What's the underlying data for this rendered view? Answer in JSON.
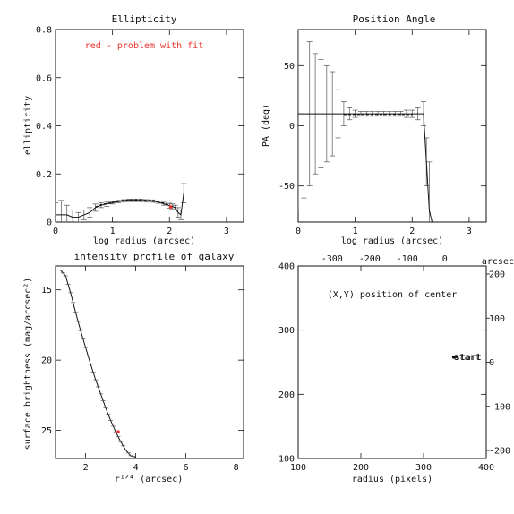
{
  "chart_data": [
    {
      "id": "ellipticity",
      "type": "line",
      "title": "Ellipticity",
      "xlabel": "log radius (arcsec)",
      "ylabel": "ellipticity",
      "xlim": [
        0,
        3.3
      ],
      "ylim": [
        0,
        0.8
      ],
      "xticks": [
        0,
        1,
        2,
        3
      ],
      "yticks": [
        0,
        0.2,
        0.4,
        0.6,
        0.8
      ],
      "annotation": "red - problem with fit",
      "annotation_color": "#e8322a",
      "x": [
        0.0,
        0.1,
        0.2,
        0.3,
        0.4,
        0.5,
        0.6,
        0.7,
        0.8,
        0.9,
        1.0,
        1.1,
        1.2,
        1.3,
        1.4,
        1.5,
        1.6,
        1.7,
        1.8,
        1.9,
        2.0,
        2.05,
        2.1,
        2.15,
        2.2,
        2.25
      ],
      "y": [
        0.03,
        0.03,
        0.03,
        0.02,
        0.02,
        0.03,
        0.04,
        0.06,
        0.07,
        0.075,
        0.08,
        0.085,
        0.088,
        0.09,
        0.09,
        0.09,
        0.088,
        0.087,
        0.083,
        0.076,
        0.068,
        0.065,
        0.06,
        0.04,
        0.03,
        0.12
      ],
      "err": [
        0.05,
        0.06,
        0.04,
        0.03,
        0.02,
        0.02,
        0.02,
        0.015,
        0.01,
        0.01,
        0.005,
        0.005,
        0.005,
        0.005,
        0.005,
        0.005,
        0.005,
        0.005,
        0.005,
        0.006,
        0.01,
        0.01,
        0.01,
        0.02,
        0.02,
        0.04
      ],
      "problem_points": [
        [
          2.02,
          0.063
        ]
      ]
    },
    {
      "id": "position-angle",
      "type": "line",
      "title": "Position Angle",
      "xlabel": "log radius (arcsec)",
      "ylabel": "PA (deg)",
      "xlim": [
        0,
        3.3
      ],
      "ylim": [
        -80,
        80
      ],
      "xticks": [
        0,
        1,
        2,
        3
      ],
      "yticks": [
        -50,
        0,
        50
      ],
      "x": [
        0.0,
        0.1,
        0.2,
        0.3,
        0.4,
        0.5,
        0.6,
        0.7,
        0.8,
        0.9,
        1.0,
        1.1,
        1.2,
        1.3,
        1.4,
        1.5,
        1.6,
        1.7,
        1.8,
        1.9,
        2.0,
        2.1,
        2.2,
        2.25,
        2.3,
        2.35,
        2.4
      ],
      "y": [
        10,
        10,
        10,
        10,
        10,
        10,
        10,
        10,
        10,
        10,
        10,
        10,
        10,
        10,
        10,
        10,
        10,
        10,
        10,
        10,
        10,
        10,
        10,
        -30,
        -70,
        -80,
        -80
      ],
      "err": [
        80,
        70,
        60,
        50,
        45,
        40,
        35,
        20,
        10,
        5,
        3,
        2,
        2,
        2,
        2,
        2,
        2,
        2,
        2,
        3,
        3,
        5,
        10,
        20,
        40,
        0,
        0
      ]
    },
    {
      "id": "intensity-profile",
      "type": "line",
      "title": "intensity profile of galaxy",
      "xlabel": "r¹ᐟ⁴ (arcsec)",
      "ylabel": "surface brightness (mag/arcsec²)",
      "xlim": [
        0.8,
        8.3
      ],
      "ylim": [
        27,
        13.3
      ],
      "xticks": [
        2,
        4,
        6,
        8
      ],
      "yticks": [
        15,
        20,
        25
      ],
      "x": [
        1.0,
        1.2,
        1.4,
        1.6,
        1.8,
        2.0,
        2.2,
        2.4,
        2.6,
        2.8,
        3.0,
        3.2,
        3.4,
        3.6,
        3.8,
        4.0
      ],
      "y": [
        13.6,
        14.0,
        15.2,
        16.6,
        17.9,
        19.1,
        20.3,
        21.4,
        22.4,
        23.4,
        24.3,
        25.1,
        25.8,
        26.4,
        26.8,
        26.9
      ],
      "problem_points": [
        [
          3.3,
          25.1
        ]
      ]
    },
    {
      "id": "center-position",
      "type": "scatter",
      "annotation": "(X,Y) position of center",
      "xlabel": "radius (pixels)",
      "top_axis_label": "arcsec",
      "xlim": [
        100,
        400
      ],
      "ylim": [
        100,
        400
      ],
      "xticks": [
        100,
        200,
        300,
        400
      ],
      "yticks": [
        100,
        200,
        300,
        400
      ],
      "top_xticks": [
        -300,
        -200,
        -100,
        0
      ],
      "right_yticks": [
        200,
        100,
        0,
        -100,
        -200
      ],
      "start_label": "start",
      "points": [
        [
          348,
          258
        ],
        [
          350,
          258
        ],
        [
          352,
          259
        ]
      ]
    }
  ]
}
